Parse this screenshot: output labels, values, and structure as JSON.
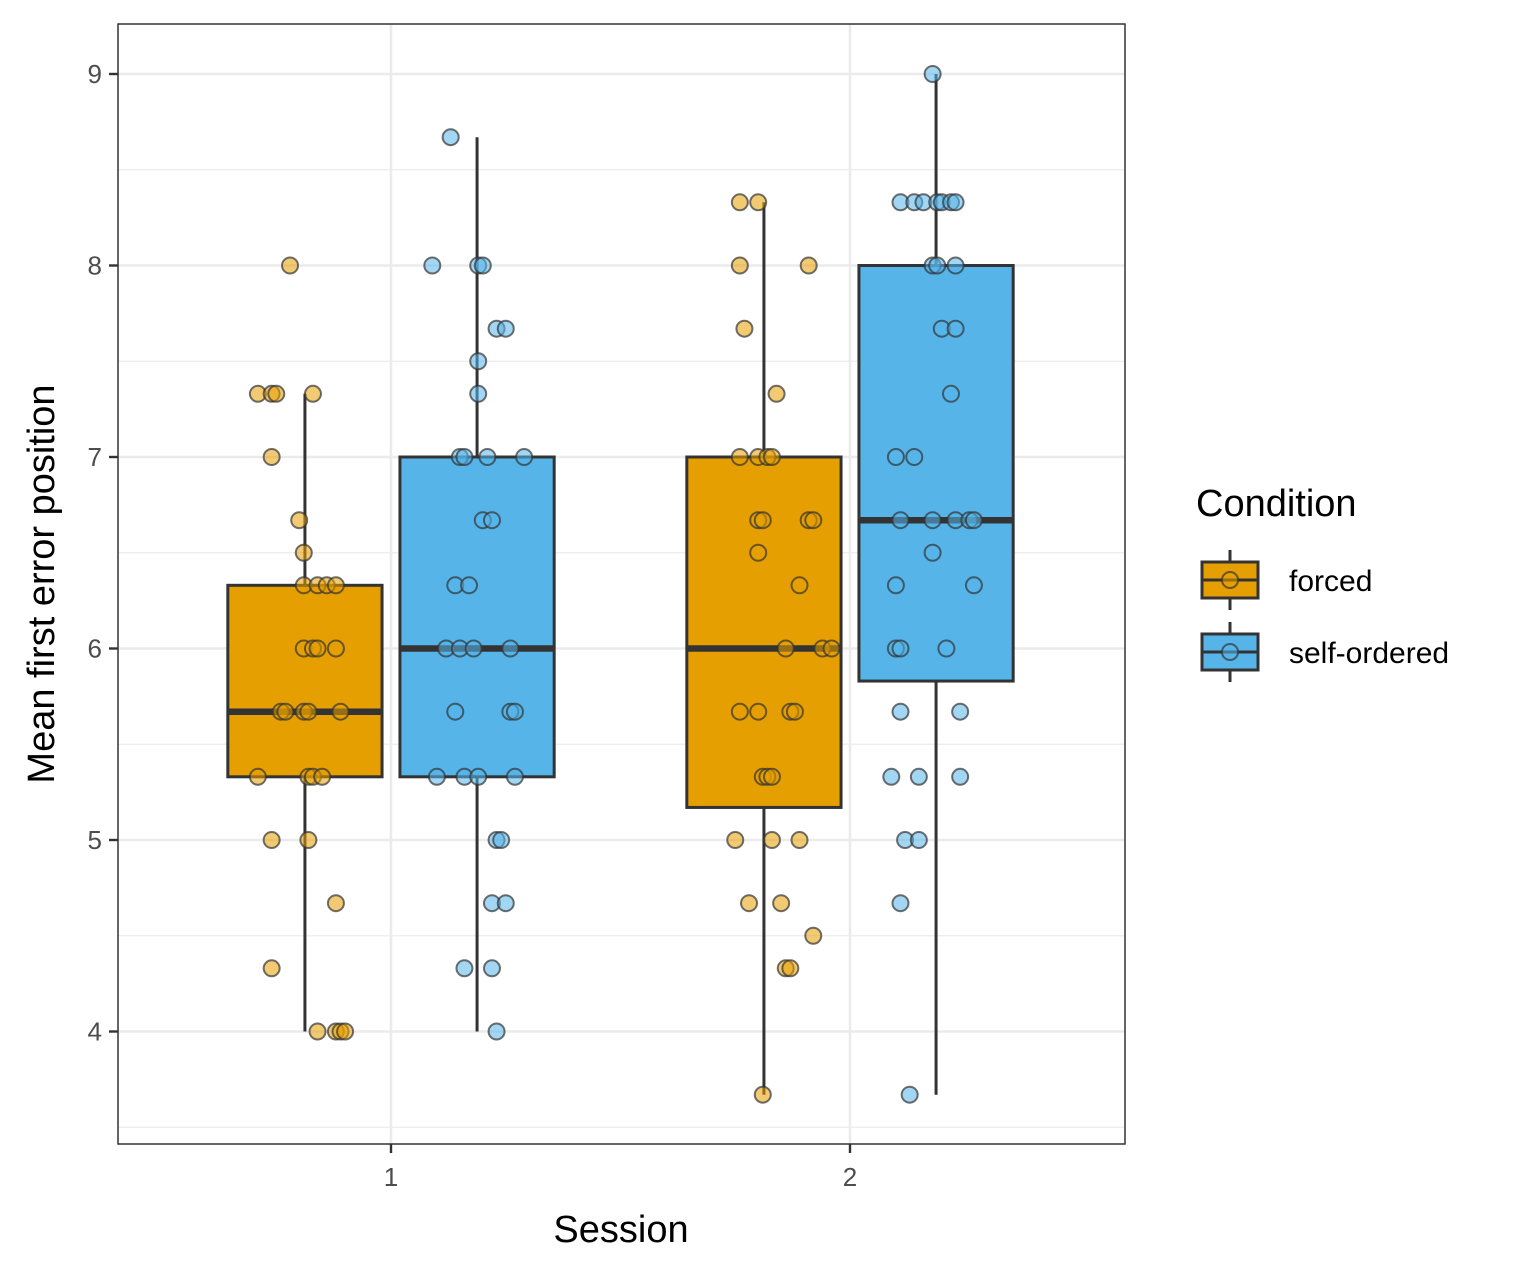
{
  "chart_data": {
    "type": "box",
    "xlabel": "Session",
    "ylabel": "Mean first error position",
    "categories": [
      "1",
      "2"
    ],
    "ylim": [
      3.45,
      9.3
    ],
    "yticks": [
      4,
      5,
      6,
      7,
      8,
      9
    ],
    "grid": true,
    "legend": {
      "title": "Condition",
      "position": "right",
      "entries": [
        {
          "label": "forced",
          "color": "#E69F00"
        },
        {
          "label": "self-ordered",
          "color": "#56B4E9"
        }
      ]
    },
    "series": [
      {
        "name": "forced",
        "color": "#E69F00",
        "boxes": [
          {
            "category": "1",
            "whisker_low": 4.0,
            "q1": 5.33,
            "median": 5.67,
            "q3": 6.33,
            "whisker_high": 7.33,
            "points": [
              {
                "x": 0.78,
                "y": 8.0
              },
              {
                "x": 0.71,
                "y": 7.33
              },
              {
                "x": 0.74,
                "y": 7.33
              },
              {
                "x": 0.75,
                "y": 7.33
              },
              {
                "x": 0.83,
                "y": 7.33
              },
              {
                "x": 0.74,
                "y": 7.0
              },
              {
                "x": 0.8,
                "y": 6.67
              },
              {
                "x": 0.81,
                "y": 6.5
              },
              {
                "x": 0.81,
                "y": 6.33
              },
              {
                "x": 0.84,
                "y": 6.33
              },
              {
                "x": 0.86,
                "y": 6.33
              },
              {
                "x": 0.88,
                "y": 6.33
              },
              {
                "x": 0.81,
                "y": 6.0
              },
              {
                "x": 0.83,
                "y": 6.0
              },
              {
                "x": 0.84,
                "y": 6.0
              },
              {
                "x": 0.88,
                "y": 6.0
              },
              {
                "x": 0.76,
                "y": 5.67
              },
              {
                "x": 0.77,
                "y": 5.67
              },
              {
                "x": 0.81,
                "y": 5.67
              },
              {
                "x": 0.82,
                "y": 5.67
              },
              {
                "x": 0.89,
                "y": 5.67
              },
              {
                "x": 0.71,
                "y": 5.33
              },
              {
                "x": 0.82,
                "y": 5.33
              },
              {
                "x": 0.83,
                "y": 5.33
              },
              {
                "x": 0.85,
                "y": 5.33
              },
              {
                "x": 0.74,
                "y": 5.0
              },
              {
                "x": 0.82,
                "y": 5.0
              },
              {
                "x": 0.88,
                "y": 4.67
              },
              {
                "x": 0.74,
                "y": 4.33
              },
              {
                "x": 0.84,
                "y": 4.0
              },
              {
                "x": 0.88,
                "y": 4.0
              },
              {
                "x": 0.89,
                "y": 4.0
              },
              {
                "x": 0.9,
                "y": 4.0
              }
            ]
          },
          {
            "category": "2",
            "whisker_low": 3.67,
            "q1": 5.17,
            "median": 6.0,
            "q3": 7.0,
            "whisker_high": 8.33,
            "points": [
              {
                "x": 1.76,
                "y": 8.33
              },
              {
                "x": 1.8,
                "y": 8.33
              },
              {
                "x": 1.76,
                "y": 8.0
              },
              {
                "x": 1.91,
                "y": 8.0
              },
              {
                "x": 1.77,
                "y": 7.67
              },
              {
                "x": 1.84,
                "y": 7.33
              },
              {
                "x": 1.76,
                "y": 7.0
              },
              {
                "x": 1.8,
                "y": 7.0
              },
              {
                "x": 1.82,
                "y": 7.0
              },
              {
                "x": 1.83,
                "y": 7.0
              },
              {
                "x": 1.8,
                "y": 6.67
              },
              {
                "x": 1.81,
                "y": 6.67
              },
              {
                "x": 1.91,
                "y": 6.67
              },
              {
                "x": 1.92,
                "y": 6.67
              },
              {
                "x": 1.8,
                "y": 6.5
              },
              {
                "x": 1.89,
                "y": 6.33
              },
              {
                "x": 1.86,
                "y": 6.0
              },
              {
                "x": 1.94,
                "y": 6.0
              },
              {
                "x": 1.96,
                "y": 6.0
              },
              {
                "x": 1.76,
                "y": 5.67
              },
              {
                "x": 1.8,
                "y": 5.67
              },
              {
                "x": 1.87,
                "y": 5.67
              },
              {
                "x": 1.88,
                "y": 5.67
              },
              {
                "x": 1.81,
                "y": 5.33
              },
              {
                "x": 1.82,
                "y": 5.33
              },
              {
                "x": 1.83,
                "y": 5.33
              },
              {
                "x": 1.75,
                "y": 5.0
              },
              {
                "x": 1.83,
                "y": 5.0
              },
              {
                "x": 1.89,
                "y": 5.0
              },
              {
                "x": 1.78,
                "y": 4.67
              },
              {
                "x": 1.85,
                "y": 4.67
              },
              {
                "x": 1.92,
                "y": 4.5
              },
              {
                "x": 1.86,
                "y": 4.33
              },
              {
                "x": 1.87,
                "y": 4.33
              },
              {
                "x": 1.81,
                "y": 3.67
              }
            ]
          }
        ]
      },
      {
        "name": "self-ordered",
        "color": "#56B4E9",
        "boxes": [
          {
            "category": "1",
            "whisker_low": 4.0,
            "q1": 5.33,
            "median": 6.0,
            "q3": 7.0,
            "whisker_high": 8.67,
            "points": [
              {
                "x": 1.13,
                "y": 8.67
              },
              {
                "x": 1.09,
                "y": 8.0
              },
              {
                "x": 1.19,
                "y": 8.0
              },
              {
                "x": 1.2,
                "y": 8.0
              },
              {
                "x": 1.23,
                "y": 7.67
              },
              {
                "x": 1.25,
                "y": 7.67
              },
              {
                "x": 1.19,
                "y": 7.5
              },
              {
                "x": 1.19,
                "y": 7.33
              },
              {
                "x": 1.15,
                "y": 7.0
              },
              {
                "x": 1.16,
                "y": 7.0
              },
              {
                "x": 1.21,
                "y": 7.0
              },
              {
                "x": 1.29,
                "y": 7.0
              },
              {
                "x": 1.2,
                "y": 6.67
              },
              {
                "x": 1.22,
                "y": 6.67
              },
              {
                "x": 1.14,
                "y": 6.33
              },
              {
                "x": 1.17,
                "y": 6.33
              },
              {
                "x": 1.12,
                "y": 6.0
              },
              {
                "x": 1.15,
                "y": 6.0
              },
              {
                "x": 1.18,
                "y": 6.0
              },
              {
                "x": 1.26,
                "y": 6.0
              },
              {
                "x": 1.14,
                "y": 5.67
              },
              {
                "x": 1.26,
                "y": 5.67
              },
              {
                "x": 1.27,
                "y": 5.67
              },
              {
                "x": 1.1,
                "y": 5.33
              },
              {
                "x": 1.16,
                "y": 5.33
              },
              {
                "x": 1.19,
                "y": 5.33
              },
              {
                "x": 1.27,
                "y": 5.33
              },
              {
                "x": 1.23,
                "y": 5.0
              },
              {
                "x": 1.24,
                "y": 5.0
              },
              {
                "x": 1.22,
                "y": 4.67
              },
              {
                "x": 1.25,
                "y": 4.67
              },
              {
                "x": 1.16,
                "y": 4.33
              },
              {
                "x": 1.22,
                "y": 4.33
              },
              {
                "x": 1.23,
                "y": 4.0
              }
            ]
          },
          {
            "category": "2",
            "whisker_low": 3.67,
            "q1": 5.83,
            "median": 6.67,
            "q3": 8.0,
            "whisker_high": 9.0,
            "points": [
              {
                "x": 2.18,
                "y": 9.0
              },
              {
                "x": 2.11,
                "y": 8.33
              },
              {
                "x": 2.14,
                "y": 8.33
              },
              {
                "x": 2.16,
                "y": 8.33
              },
              {
                "x": 2.19,
                "y": 8.33
              },
              {
                "x": 2.2,
                "y": 8.33
              },
              {
                "x": 2.22,
                "y": 8.33
              },
              {
                "x": 2.23,
                "y": 8.33
              },
              {
                "x": 2.18,
                "y": 8.0
              },
              {
                "x": 2.19,
                "y": 8.0
              },
              {
                "x": 2.23,
                "y": 8.0
              },
              {
                "x": 2.2,
                "y": 7.67
              },
              {
                "x": 2.23,
                "y": 7.67
              },
              {
                "x": 2.22,
                "y": 7.33
              },
              {
                "x": 2.1,
                "y": 7.0
              },
              {
                "x": 2.14,
                "y": 7.0
              },
              {
                "x": 2.11,
                "y": 6.67
              },
              {
                "x": 2.18,
                "y": 6.67
              },
              {
                "x": 2.23,
                "y": 6.67
              },
              {
                "x": 2.26,
                "y": 6.67
              },
              {
                "x": 2.27,
                "y": 6.67
              },
              {
                "x": 2.18,
                "y": 6.5
              },
              {
                "x": 2.1,
                "y": 6.33
              },
              {
                "x": 2.27,
                "y": 6.33
              },
              {
                "x": 2.1,
                "y": 6.0
              },
              {
                "x": 2.11,
                "y": 6.0
              },
              {
                "x": 2.21,
                "y": 6.0
              },
              {
                "x": 2.11,
                "y": 5.67
              },
              {
                "x": 2.24,
                "y": 5.67
              },
              {
                "x": 2.09,
                "y": 5.33
              },
              {
                "x": 2.15,
                "y": 5.33
              },
              {
                "x": 2.24,
                "y": 5.33
              },
              {
                "x": 2.12,
                "y": 5.0
              },
              {
                "x": 2.15,
                "y": 5.0
              },
              {
                "x": 2.11,
                "y": 4.67
              },
              {
                "x": 2.13,
                "y": 3.67
              }
            ]
          }
        ]
      }
    ]
  }
}
